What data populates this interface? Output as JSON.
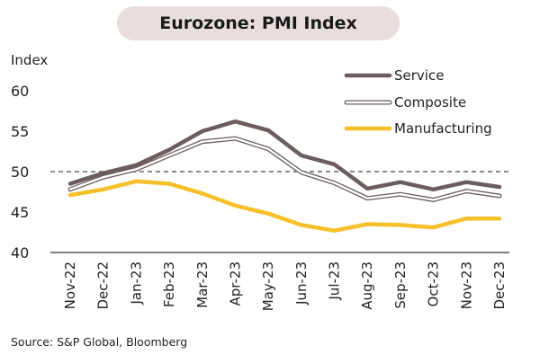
{
  "chart_data": {
    "type": "line",
    "title": "Eurozone: PMI Index",
    "ylabel": "Index",
    "xlabel": "",
    "source": "Source: S&P Global, Bloomberg",
    "categories": [
      "Nov-22",
      "Dec-22",
      "Jan-23",
      "Feb-23",
      "Mar-23",
      "Apr-23",
      "May-23",
      "Jun-23",
      "Jul-23",
      "Aug-23",
      "Sep-23",
      "Oct-23",
      "Nov-23",
      "Dec-23"
    ],
    "ylim": [
      40,
      60
    ],
    "yticks": [
      40,
      45,
      50,
      55,
      60
    ],
    "reference_line": 50,
    "grid": false,
    "legend_position": "top-right",
    "series": [
      {
        "name": "Service",
        "color": "#6b5d5d",
        "style": "solid",
        "values": [
          48.5,
          49.8,
          50.8,
          52.7,
          55.0,
          56.2,
          55.1,
          52.0,
          50.9,
          47.9,
          48.7,
          47.8,
          48.7,
          48.1
        ]
      },
      {
        "name": "Composite",
        "color": "#6b5d5d",
        "style": "outline",
        "values": [
          47.8,
          49.3,
          50.3,
          52.0,
          53.7,
          54.1,
          52.8,
          49.9,
          48.6,
          46.7,
          47.2,
          46.5,
          47.6,
          47.0
        ]
      },
      {
        "name": "Manufacturing",
        "color": "#f5c02a",
        "style": "solid",
        "values": [
          47.1,
          47.8,
          48.8,
          48.5,
          47.3,
          45.8,
          44.8,
          43.4,
          42.7,
          43.5,
          43.4,
          43.1,
          44.2,
          44.2
        ]
      }
    ]
  }
}
